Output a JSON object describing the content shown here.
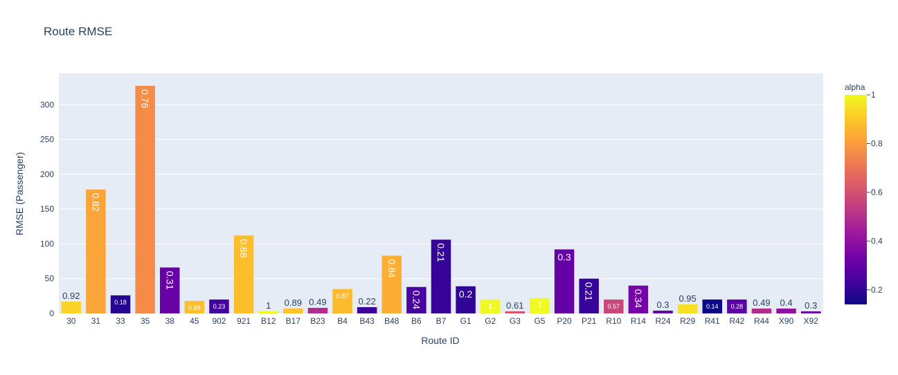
{
  "chart_data": {
    "type": "bar",
    "title": "Route RMSE",
    "xlabel": "Route ID",
    "ylabel": "RMSE (Passenger)",
    "ylim": [
      0,
      345
    ],
    "yticks": [
      "0",
      "50",
      "100",
      "150",
      "200",
      "250",
      "300"
    ],
    "grid": true,
    "categories": [
      "30",
      "31",
      "33",
      "35",
      "38",
      "45",
      "902",
      "921",
      "B12",
      "B17",
      "B23",
      "B4",
      "B43",
      "B48",
      "B6",
      "B7",
      "G1",
      "G2",
      "G3",
      "G5",
      "P20",
      "P21",
      "R10",
      "R14",
      "R24",
      "R29",
      "R41",
      "R42",
      "R44",
      "X90",
      "X92"
    ],
    "values": [
      17,
      178,
      26,
      327,
      66,
      18,
      20,
      112,
      3,
      7,
      8,
      35,
      9,
      83,
      38,
      106,
      39,
      20,
      3,
      22,
      92,
      50,
      20,
      40,
      4,
      13,
      20,
      20,
      7,
      7,
      3
    ],
    "alpha": [
      0.92,
      0.82,
      0.18,
      0.76,
      0.31,
      0.88,
      0.23,
      0.88,
      1,
      0.89,
      0.49,
      0.87,
      0.22,
      0.84,
      0.24,
      0.21,
      0.2,
      1,
      0.61,
      1,
      0.3,
      0.21,
      0.57,
      0.34,
      0.3,
      0.95,
      0.14,
      0.28,
      0.49,
      0.4,
      0.3
    ],
    "labels": [
      "0.92",
      "0.82",
      "0.18",
      "0.76",
      "0.31",
      "0.88",
      "0.23",
      "0.88",
      "1",
      "0.89",
      "0.49",
      "0.87",
      "0.22",
      "0.84",
      "0.24",
      "0.21",
      "0.2",
      "1",
      "0.61",
      "1",
      "0.3",
      "0.21",
      "0.57",
      "0.34",
      "0.3",
      "0.95",
      "0.14",
      "0.28",
      "0.49",
      "0.4",
      "0.3"
    ],
    "colorbar": {
      "title": "alpha",
      "range": [
        0.14,
        1
      ],
      "ticks": [
        "0.2",
        "0.4",
        "0.6",
        "0.8",
        "1"
      ],
      "colorscale": "plasma"
    }
  },
  "colors": {
    "plot_bg": "#e5ecf6",
    "grid": "#ffffff",
    "text": "#2a3f5f"
  }
}
